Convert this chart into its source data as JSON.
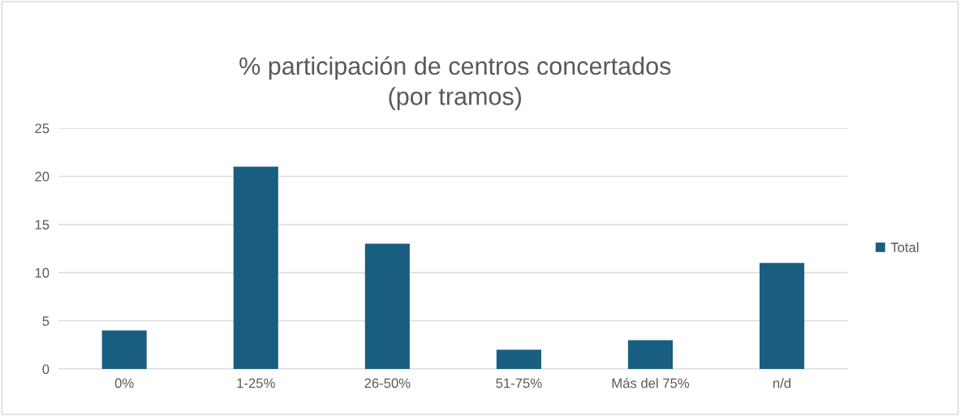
{
  "chart_data": {
    "type": "bar",
    "title": "% participación de centros concertados\n(por tramos)",
    "categories": [
      "0%",
      "1-25%",
      "26-50%",
      "51-75%",
      "Más del 75%",
      "n/d"
    ],
    "series": [
      {
        "name": "Total",
        "color": "#195e80",
        "values": [
          4,
          21,
          13,
          2,
          3,
          11
        ]
      }
    ],
    "ylim": [
      0,
      25
    ],
    "yticks": [
      0,
      5,
      10,
      15,
      20,
      25
    ],
    "grid": "y",
    "legend": "right"
  }
}
